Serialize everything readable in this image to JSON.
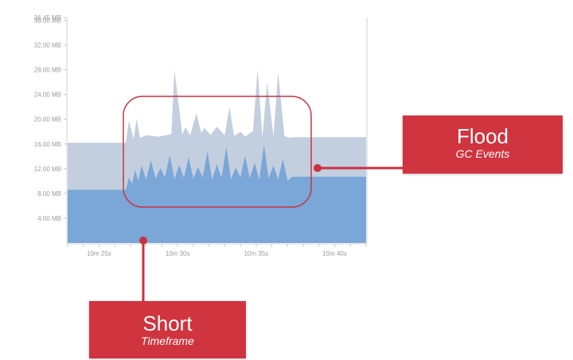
{
  "chart_data": {
    "type": "area",
    "y_tick_labels": [
      "36.45 MB",
      "36.00 MB",
      "32.00 MB",
      "28.00 MB",
      "24.00 MB",
      "20.00 MB",
      "16.00 MB",
      "12.00 MB",
      "8.00 MB",
      "4.00 MB"
    ],
    "x_tick_labels": [
      "10m 25s",
      "10m 30s",
      "10m 35s",
      "10m 40s"
    ],
    "ylim": [
      0,
      36.45
    ],
    "xlim": [
      23,
      42
    ],
    "x_ticks": [
      25,
      30,
      35,
      40
    ],
    "y_ticks": [
      36.45,
      36,
      32,
      28,
      24,
      20,
      16,
      12,
      8,
      4
    ],
    "grid": false,
    "series": [
      {
        "color": "#c3cfdf",
        "x": [
          23,
          26.7,
          26.9,
          27.2,
          27.4,
          27.6,
          28,
          28.8,
          29.6,
          29.8,
          30.3,
          30.5,
          30.8,
          31.2,
          31.5,
          31.7,
          32.1,
          32.5,
          33,
          33.3,
          33.6,
          34,
          34.3,
          34.8,
          35.1,
          35.4,
          35.7,
          36.1,
          36.4,
          36.8,
          37.1,
          37.3,
          42
        ],
        "y": [
          16.2,
          16.2,
          19.8,
          16.8,
          20.1,
          17,
          17.4,
          17.2,
          17.6,
          28,
          17.5,
          18.7,
          17.4,
          21,
          17.8,
          18.6,
          17.5,
          18.8,
          17.4,
          22,
          17.3,
          18,
          17.2,
          18.1,
          28.1,
          17,
          26,
          17.2,
          27.6,
          17.3,
          17,
          17.1,
          17.1
        ]
      },
      {
        "color": "#7aa6d8",
        "x": [
          23,
          26.7,
          26.9,
          27.1,
          27.3,
          27.5,
          27.7,
          28,
          28.3,
          28.6,
          28.9,
          29.2,
          29.5,
          29.8,
          30.1,
          30.4,
          30.7,
          31,
          31.3,
          31.6,
          31.9,
          32.2,
          32.5,
          32.8,
          33.1,
          33.4,
          33.7,
          34,
          34.3,
          34.6,
          34.9,
          35.2,
          35.5,
          35.8,
          36.1,
          36.4,
          36.7,
          37,
          37.3,
          42
        ],
        "y": [
          8.6,
          8.6,
          10.5,
          9.6,
          11.8,
          10,
          12.5,
          10.2,
          13.4,
          10.4,
          12.1,
          10.6,
          14.2,
          10.3,
          12.6,
          10.5,
          13.9,
          10.4,
          12.3,
          10.6,
          14.8,
          10.2,
          12.7,
          10.5,
          15.5,
          10.3,
          12.2,
          10.6,
          14.1,
          10.4,
          13,
          10.2,
          15.9,
          10.4,
          12.5,
          10.3,
          13.6,
          10.1,
          10.7,
          10.7
        ]
      }
    ]
  },
  "callouts": {
    "flood": {
      "title": "Flood",
      "subtitle": "GC Events",
      "color": "#d0343f"
    },
    "short": {
      "title": "Short",
      "subtitle": "Timeframe",
      "color": "#d0343f"
    }
  },
  "highlight_color": "#c9333e"
}
